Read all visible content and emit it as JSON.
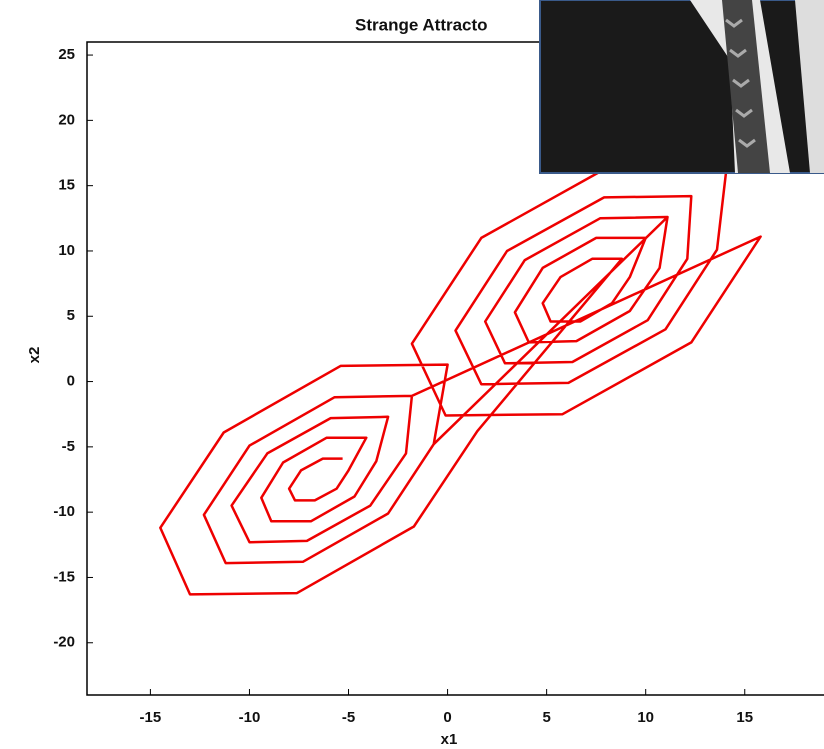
{
  "chart_data": {
    "type": "line",
    "title": "Strange Attracto",
    "x_label": "x1",
    "y_label": "x2",
    "x": [
      -5.3,
      -6.3,
      -7.4,
      -8.0,
      -7.7,
      -6.7,
      -5.6,
      -5.0,
      -4.1,
      -6.1,
      -8.3,
      -9.4,
      -8.9,
      -6.9,
      -4.7,
      -3.6,
      -3.0,
      -5.9,
      -9.1,
      -10.9,
      -10.0,
      -7.1,
      -3.9,
      -2.1,
      -1.8,
      -5.7,
      -10.0,
      -12.3,
      -11.2,
      -7.3,
      -3.0,
      -0.7,
      0.0,
      -5.4,
      -11.3,
      -14.5,
      -13.0,
      -7.6,
      -1.7,
      1.5,
      8.8,
      7.3,
      5.7,
      4.8,
      5.2,
      6.7,
      8.3,
      9.2,
      10.0,
      7.5,
      4.8,
      3.4,
      4.1,
      6.5,
      9.2,
      10.7,
      11.1,
      7.7,
      3.9,
      1.9,
      2.9,
      6.3,
      10.1,
      12.1,
      12.3,
      7.9,
      3.0,
      0.4,
      1.7,
      6.1,
      11.0,
      13.6,
      14.1,
      8.2,
      1.7,
      -1.8,
      -0.1,
      5.8,
      12.3,
      15.8,
      -1.8,
      -5.7,
      -10.0,
      -12.3,
      -11.2,
      -7.3,
      -3.0,
      -0.7,
      11.1,
      7.7,
      3.9,
      1.9,
      2.9,
      6.3,
      10.1,
      12.1
    ],
    "values": [
      -5.9,
      -5.9,
      -6.8,
      -8.2,
      -9.1,
      -9.1,
      -8.2,
      -6.8,
      -4.3,
      -4.3,
      -6.2,
      -8.9,
      -10.7,
      -10.7,
      -8.8,
      -6.1,
      -2.7,
      -2.8,
      -5.5,
      -9.5,
      -12.3,
      -12.2,
      -9.5,
      -5.5,
      -1.1,
      -1.2,
      -4.9,
      -10.2,
      -13.9,
      -13.8,
      -10.1,
      -4.8,
      1.3,
      1.2,
      -3.9,
      -11.2,
      -16.3,
      -16.2,
      -11.1,
      -3.8,
      9.4,
      9.4,
      8.0,
      6.0,
      4.6,
      4.6,
      6.0,
      8.0,
      11.0,
      11.0,
      8.7,
      5.3,
      3.0,
      3.1,
      5.4,
      8.7,
      12.6,
      12.5,
      9.3,
      4.6,
      1.4,
      1.5,
      4.7,
      9.4,
      14.2,
      14.1,
      10.0,
      3.9,
      -0.2,
      -0.1,
      4.0,
      10.1,
      16.6,
      16.5,
      11.0,
      2.9,
      -2.6,
      -2.5,
      3.0,
      11.1,
      -1.1,
      -1.2,
      -4.9,
      -10.2,
      -13.9,
      -13.8,
      -10.1,
      -4.8,
      12.6,
      12.5,
      9.3,
      4.6,
      1.4,
      1.5,
      4.7,
      9.4
    ],
    "color": "#ee0000",
    "xlim": [
      -18.2,
      19
    ],
    "ylim": [
      -24,
      26
    ],
    "xticks": [
      -15,
      -10,
      -5,
      0,
      5,
      10,
      15
    ],
    "yticks": [
      -20,
      -15,
      -10,
      -5,
      0,
      5,
      10,
      15,
      20,
      25
    ],
    "grid": false
  }
}
